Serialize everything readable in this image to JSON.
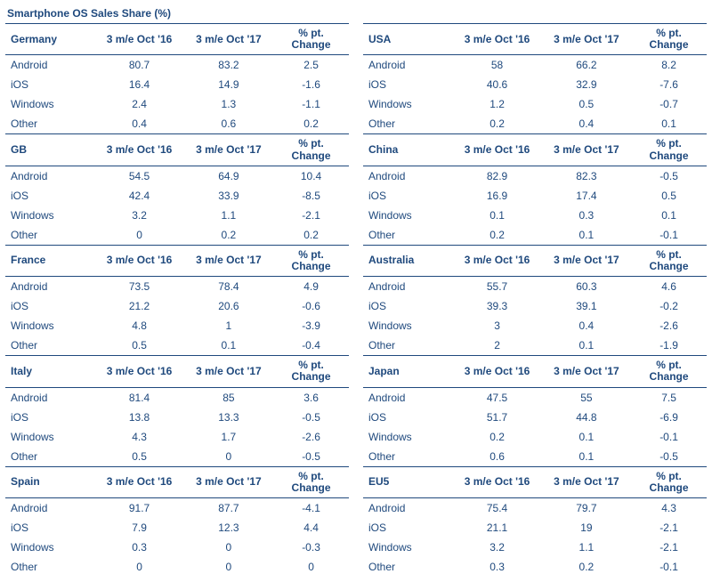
{
  "title": "Smartphone OS Sales Share (%)",
  "column_headers": {
    "c2": "3 m/e Oct '16",
    "c3": "3 m/e Oct '17",
    "c4": "% pt. Change"
  },
  "os_labels": [
    "Android",
    "iOS",
    "Windows",
    "Other"
  ],
  "left_column": [
    {
      "country": "Germany",
      "rows": [
        [
          80.7,
          83.2,
          2.5
        ],
        [
          16.4,
          14.9,
          -1.6
        ],
        [
          2.4,
          1.3,
          -1.1
        ],
        [
          0.4,
          0.6,
          0.2
        ]
      ]
    },
    {
      "country": "GB",
      "rows": [
        [
          54.5,
          64.9,
          10.4
        ],
        [
          42.4,
          33.9,
          -8.5
        ],
        [
          3.2,
          1.1,
          -2.1
        ],
        [
          0,
          0.2,
          0.2
        ]
      ]
    },
    {
      "country": "France",
      "rows": [
        [
          73.5,
          78.4,
          4.9
        ],
        [
          21.2,
          20.6,
          -0.6
        ],
        [
          4.8,
          1,
          -3.9
        ],
        [
          0.5,
          0.1,
          -0.4
        ]
      ]
    },
    {
      "country": "Italy",
      "rows": [
        [
          81.4,
          85,
          3.6
        ],
        [
          13.8,
          13.3,
          -0.5
        ],
        [
          4.3,
          1.7,
          -2.6
        ],
        [
          0.5,
          0,
          -0.5
        ]
      ]
    },
    {
      "country": "Spain",
      "rows": [
        [
          91.7,
          87.7,
          -4.1
        ],
        [
          7.9,
          12.3,
          4.4
        ],
        [
          0.3,
          0,
          -0.3
        ],
        [
          0,
          0,
          0
        ]
      ]
    }
  ],
  "right_column": [
    {
      "country": "USA",
      "rows": [
        [
          58,
          66.2,
          8.2
        ],
        [
          40.6,
          32.9,
          -7.6
        ],
        [
          1.2,
          0.5,
          -0.7
        ],
        [
          0.2,
          0.4,
          0.1
        ]
      ]
    },
    {
      "country": "China",
      "rows": [
        [
          82.9,
          82.3,
          -0.5
        ],
        [
          16.9,
          17.4,
          0.5
        ],
        [
          0.1,
          0.3,
          0.1
        ],
        [
          0.2,
          0.1,
          -0.1
        ]
      ]
    },
    {
      "country": "Australia",
      "rows": [
        [
          55.7,
          60.3,
          4.6
        ],
        [
          39.3,
          39.1,
          -0.2
        ],
        [
          3,
          0.4,
          -2.6
        ],
        [
          2,
          0.1,
          -1.9
        ]
      ]
    },
    {
      "country": "Japan",
      "rows": [
        [
          47.5,
          55,
          7.5
        ],
        [
          51.7,
          44.8,
          -6.9
        ],
        [
          0.2,
          0.1,
          -0.1
        ],
        [
          0.6,
          0.1,
          -0.5
        ]
      ]
    },
    {
      "country": "EU5",
      "rows": [
        [
          75.4,
          79.7,
          4.3
        ],
        [
          21.1,
          19,
          -2.1
        ],
        [
          3.2,
          1.1,
          -2.1
        ],
        [
          0.3,
          0.2,
          -0.1
        ]
      ]
    }
  ],
  "style": {
    "text_color": "#1f497d",
    "border_color": "#1f497d",
    "background_color": "#ffffff",
    "font_family": "Arial, Helvetica, sans-serif",
    "base_font_size": 12
  }
}
